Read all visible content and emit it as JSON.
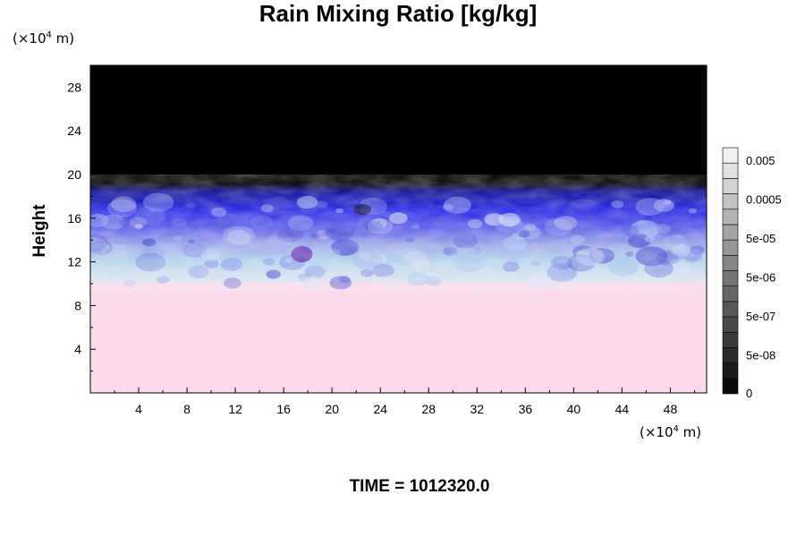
{
  "chart_data": {
    "type": "heatmap",
    "title": "Rain Mixing Ratio [kg/kg]",
    "ylabel": "Height",
    "xlabel": "",
    "x_unit": {
      "prefix": "(×10",
      "exp": "4",
      "suffix": " m)"
    },
    "y_unit": {
      "prefix": "(×10",
      "exp": "4",
      "suffix": " m)"
    },
    "xlim": [
      0,
      51
    ],
    "ylim": [
      0,
      30
    ],
    "x_ticks": [
      4,
      8,
      12,
      16,
      20,
      24,
      28,
      32,
      36,
      40,
      44,
      48
    ],
    "y_ticks": [
      4,
      8,
      12,
      16,
      20,
      24,
      28
    ],
    "field_layers": [
      {
        "name": "surface",
        "y_range": [
          0,
          10
        ],
        "color": "#fcdcec"
      },
      {
        "name": "light-band",
        "y_range": [
          10,
          12.5
        ],
        "color": "#b8d6ea"
      },
      {
        "name": "mid-band",
        "y_range": [
          12.5,
          15
        ],
        "color": "#8f9ce8"
      },
      {
        "name": "upper-band",
        "y_range": [
          15,
          19
        ],
        "color": "#1e1ee6"
      },
      {
        "name": "top",
        "y_range": [
          19,
          30
        ],
        "color": "#000000"
      }
    ],
    "colorbar": {
      "labels": [
        "0.005",
        "0.0005",
        "5e-05",
        "5e-06",
        "5e-07",
        "5e-08",
        "0"
      ],
      "levels": 16
    },
    "time_label": "TIME = 1012320.0"
  }
}
